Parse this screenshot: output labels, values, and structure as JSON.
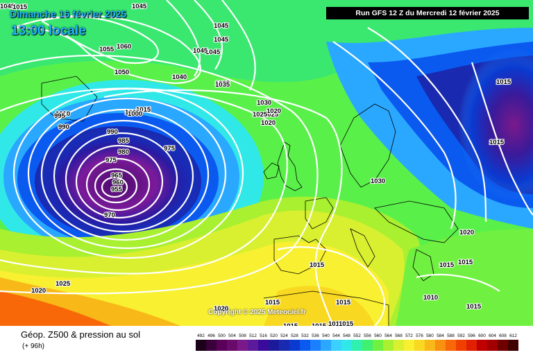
{
  "header": {
    "date": "Dimanche 16 février 2025",
    "time": "13:00 locale",
    "run": "Run GFS 12 Z du Mercredi 12 février 2025"
  },
  "copyright": "Copyright © 2025 Meteociel.fr",
  "footer": {
    "title": "Géop. Z500 & pression au sol",
    "subtitle": "(+ 96h)"
  },
  "legend": {
    "values": [
      "492",
      "496",
      "500",
      "504",
      "508",
      "512",
      "516",
      "520",
      "524",
      "528",
      "532",
      "536",
      "540",
      "544",
      "548",
      "552",
      "556",
      "560",
      "564",
      "568",
      "572",
      "576",
      "580",
      "584",
      "588",
      "592",
      "596",
      "600",
      "604",
      "608",
      "612"
    ],
    "colors": [
      "#1a0018",
      "#3a003a",
      "#5a005a",
      "#6a0a6a",
      "#7a1a8a",
      "#5a1a9a",
      "#3a0a9a",
      "#1a1a9a",
      "#1a2ab0",
      "#0a3ad0",
      "#0a5af0",
      "#1a80ff",
      "#2aa8ff",
      "#3ad0ff",
      "#30e8e8",
      "#30f0b0",
      "#40f070",
      "#70f040",
      "#a8f030",
      "#d8f030",
      "#f8f030",
      "#f8d820",
      "#f8b818",
      "#f89010",
      "#f86808",
      "#f04000",
      "#e02000",
      "#c00000",
      "#a00000",
      "#700000",
      "#400000"
    ]
  },
  "isobars": [
    "1045",
    "1045",
    "1045",
    "1045",
    "1045",
    "1045",
    "1060",
    "1055",
    "1050",
    "1040",
    "1035",
    "1030",
    "1025",
    "1020",
    "1015",
    "1015",
    "1015",
    "1015",
    "1010",
    "1005",
    "1000",
    "995",
    "990",
    "990",
    "985",
    "980",
    "975",
    "975",
    "970",
    "965",
    "960",
    "955",
    "1030",
    "1020",
    "1025",
    "1020",
    "1015",
    "1015",
    "1015",
    "1015",
    "1015",
    "1015",
    "1010",
    "1015",
    "1020",
    "1015",
    "1015",
    "1015",
    "1020",
    "1025",
    "1035"
  ]
}
